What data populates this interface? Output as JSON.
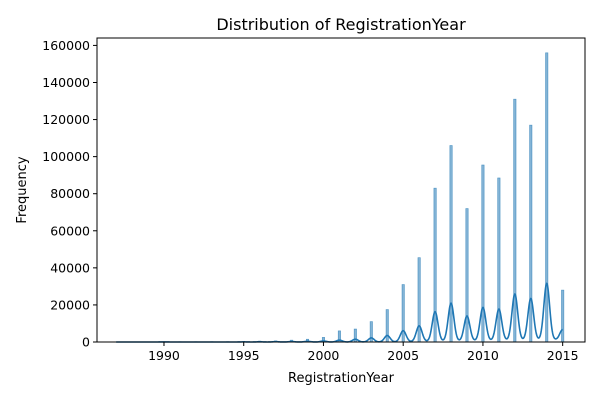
{
  "chart_data": {
    "type": "bar",
    "title": "Distribution of RegistrationYear",
    "xlabel": "RegistrationYear",
    "ylabel": "Frequency",
    "xlim": [
      1985.8,
      2016.4
    ],
    "ylim": [
      0,
      164000
    ],
    "xticks": [
      1990,
      1995,
      2000,
      2005,
      2010,
      2015
    ],
    "yticks": [
      0,
      20000,
      40000,
      60000,
      80000,
      100000,
      120000,
      140000,
      160000
    ],
    "grid": false,
    "legend": "none",
    "bar_color": "#1f77b4",
    "kde_color": "#1f77b4",
    "series": [
      {
        "kind": "histogram",
        "x": [
          1987,
          1988,
          1989,
          1990,
          1991,
          1992,
          1993,
          1994,
          1995,
          1996,
          1997,
          1998,
          1999,
          2000,
          2001,
          2002,
          2003,
          2004,
          2005,
          2006,
          2007,
          2008,
          2009,
          2010,
          2011,
          2012,
          2013,
          2014,
          2015
        ],
        "values": [
          100,
          100,
          100,
          150,
          150,
          150,
          200,
          200,
          300,
          500,
          600,
          1000,
          1500,
          2500,
          6000,
          7000,
          11000,
          17500,
          31000,
          45500,
          83000,
          106000,
          72000,
          95500,
          88500,
          131000,
          117000,
          156000,
          28000
        ]
      },
      {
        "kind": "kde",
        "peaks_x": [
          1990,
          1995,
          1996,
          1997,
          1998,
          1999,
          2000,
          2001,
          2002,
          2003,
          2004,
          2005,
          2006,
          2007,
          2008,
          2009,
          2010,
          2011,
          2012,
          2013,
          2014,
          2015
        ],
        "peaks_y": [
          50,
          80,
          120,
          180,
          260,
          380,
          550,
          1000,
          1500,
          2200,
          3500,
          6000,
          8500,
          16000,
          20500,
          13500,
          18000,
          17000,
          25000,
          22500,
          30500,
          5500
        ]
      }
    ]
  }
}
